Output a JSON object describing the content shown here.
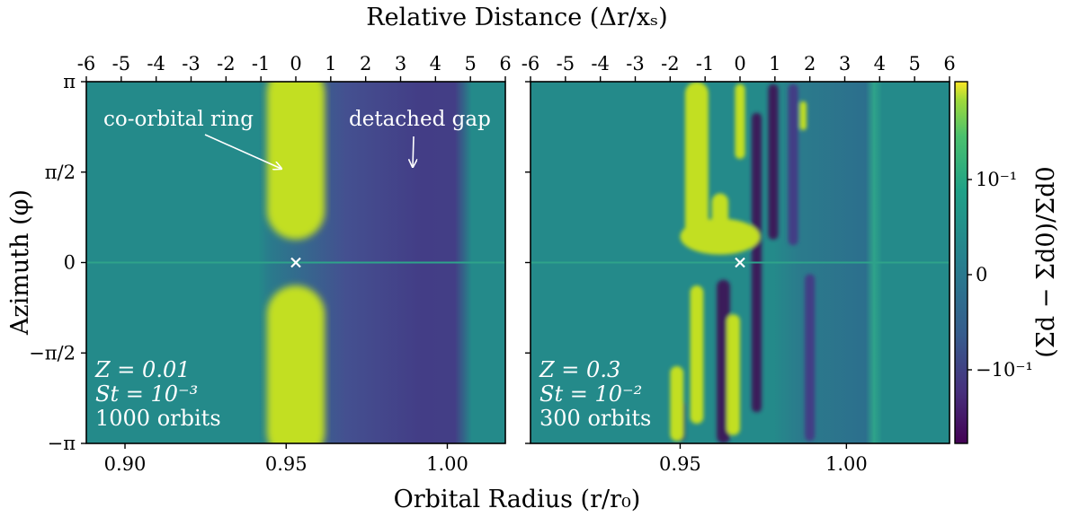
{
  "figure": {
    "top_axis_title": "Relative Distance (Δr/xₛ)",
    "bottom_axis_title": "Orbital Radius (r/r₀)",
    "y_axis_title": "Azimuth (φ)",
    "colorbar_title": "(Σd − Σd0)/Σd0",
    "colorbar_ticks": [
      "10⁻¹",
      "0",
      "−10⁻¹"
    ],
    "colors": {
      "background": "#248a8a",
      "ring": "#c2df23",
      "gap": "#433e85",
      "dark": "#3b1c5a",
      "marker": "#ffffff"
    }
  },
  "chart_data": [
    {
      "type": "heatmap",
      "panel": "left",
      "title": "",
      "xlabel": "Orbital Radius (r/r₀)",
      "ylabel": "Azimuth (φ)",
      "xlim": [
        0.888,
        1.018
      ],
      "ylim": [
        -3.1416,
        3.1416
      ],
      "x_ticks": [
        0.9,
        0.95,
        1.0
      ],
      "x_tick_labels": [
        "0.90",
        "0.95",
        "1.00"
      ],
      "y_ticks": [
        3.1416,
        1.5708,
        0,
        -1.5708,
        -3.1416
      ],
      "y_tick_labels": [
        "π",
        "π/2",
        "0",
        "−π/2",
        "−π"
      ],
      "top_axis": {
        "label": "Relative Distance (Δr/xₛ)",
        "ticks": [
          -6,
          -5,
          -4,
          -3,
          -2,
          -1,
          0,
          1,
          2,
          3,
          4,
          5,
          6
        ],
        "tick_labels": [
          "-6",
          "-5",
          "-4",
          "-3",
          "-2",
          "-1",
          "0",
          "1",
          "2",
          "3",
          "4",
          "5",
          "6"
        ]
      },
      "planet": {
        "r": 0.953,
        "phi": 0
      },
      "features": {
        "ring_r": [
          0.944,
          0.962
        ],
        "gap_r": [
          0.965,
          1.003
        ],
        "ring_gap_phi": [
          -0.4,
          0.4
        ]
      },
      "annotations": [
        {
          "text": "co-orbital ring",
          "points_to": {
            "r": 0.95,
            "phi": 1.63
          }
        },
        {
          "text": "detached gap",
          "points_to": {
            "r": 0.991,
            "phi": 1.66
          }
        }
      ],
      "params": {
        "Z": "Z = 0.01",
        "St": "St = 10⁻³",
        "orbits": "1000 orbits"
      }
    },
    {
      "type": "heatmap",
      "panel": "right",
      "title": "",
      "xlabel": "Orbital Radius (r/r₀)",
      "ylabel": "",
      "xlim": [
        0.905,
        1.031
      ],
      "ylim": [
        -3.1416,
        3.1416
      ],
      "x_ticks": [
        0.95,
        1.0
      ],
      "x_tick_labels": [
        "0.95",
        "1.00"
      ],
      "top_axis": {
        "label": "Relative Distance (Δr/xₛ)",
        "ticks": [
          -6,
          -5,
          -4,
          -3,
          -2,
          -1,
          0,
          1,
          2,
          3,
          4,
          5,
          6
        ],
        "tick_labels": [
          "-6",
          "-5",
          "-4",
          "-3",
          "-2",
          "-1",
          "0",
          "1",
          "2",
          "3",
          "4",
          "5",
          "6"
        ]
      },
      "planet": {
        "r": 0.968,
        "phi": 0
      },
      "params": {
        "Z": "Z = 0.3",
        "St": "St = 10⁻²",
        "orbits": "300 orbits"
      }
    }
  ]
}
